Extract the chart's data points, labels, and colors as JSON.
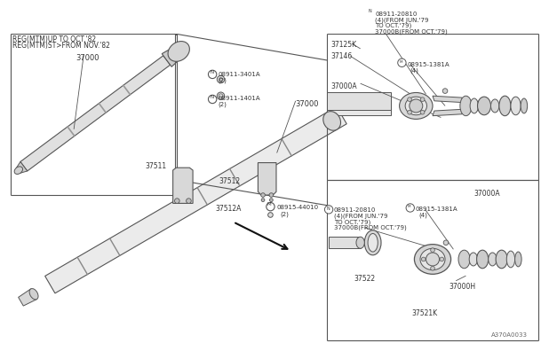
{
  "bg_color": "#ffffff",
  "line_color": "#555555",
  "text_color": "#333333",
  "diagram_id": "A370A0033",
  "labels": {
    "tl1": "REG(MTM)UP TO OCT.'82",
    "tl2": "REG(MTM)ST>FROM NOV.'82",
    "n37000_tl": "37000",
    "n37511": "37511",
    "n37512": "37512",
    "n37512A": "37512A",
    "n37000": "37000",
    "n37125K": "37125K",
    "n37146": "37146",
    "n37000A_tr": "37000A",
    "n37000A_br": "37000A",
    "n37000H": "37000H",
    "n37522": "37522",
    "n37521K": "37521K",
    "N08911_3401A": "ℕ 08911-3401A",
    "qty2a": "(2)",
    "N08911_1401A": "ℕ 08911-1401A",
    "qty2b": "(2)",
    "N08911_20810_tr1": "ℕ 08911-20810",
    "N08911_20810_tr2": "(4)(FROM JUN.'79",
    "N08911_20810_tr3": "TO OCT.'79)",
    "N08911_20810_tr4": "37000B(FROM OCT.'79)",
    "M08915_1381A_tr": "ⓜ 08915-1381A",
    "qty4a": "(4)",
    "N08911_20810_br1": "ℕ 08911-20810",
    "N08911_20810_br2": "(4)(FROM JUN.'79",
    "N08911_20810_br3": "TO OCT.'79)",
    "N08911_20810_br4": "37000B(FROM OCT.'79)",
    "M08915_1381A_br": "ⓜ 08915-1381A",
    "qty4b": "(4)",
    "M08915_44010": "ⓜ 08915-44010",
    "qty2c": "(2)"
  }
}
